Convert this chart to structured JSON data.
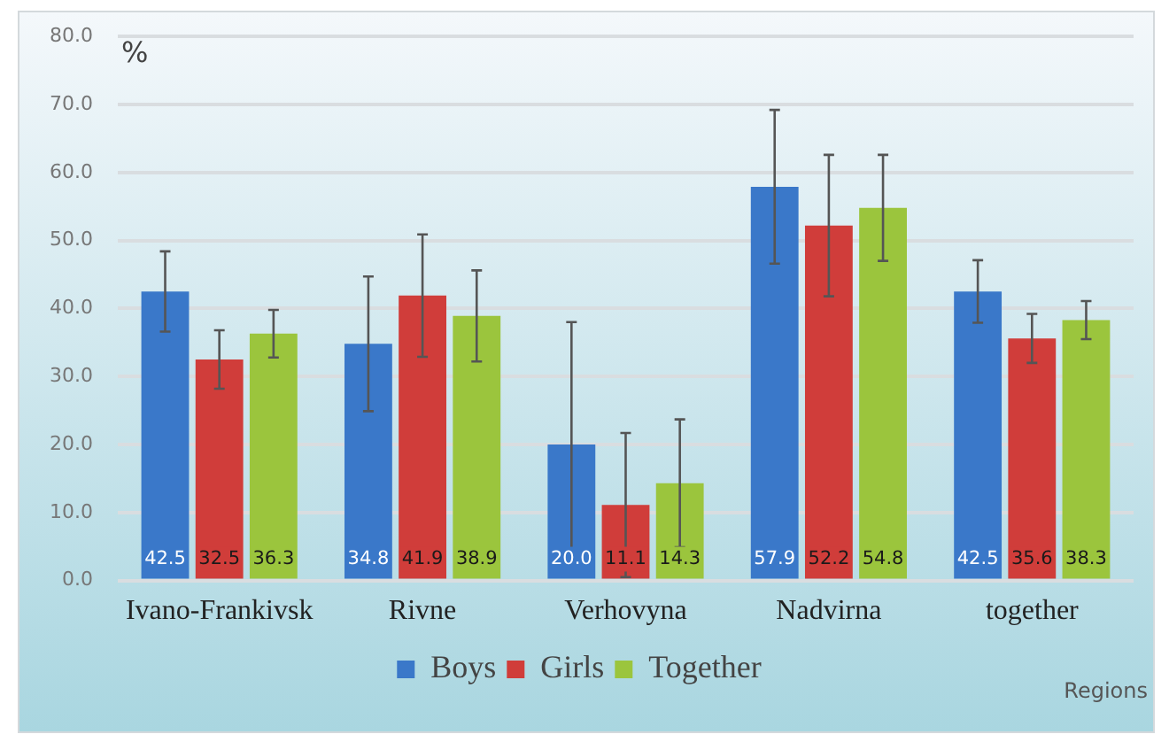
{
  "chart_data": {
    "type": "bar",
    "ylabel": "%",
    "xlabel": "Regions",
    "categories": [
      "Ivano-Frankivsk",
      "Rivne",
      "Verhovyna",
      "Nadvirna",
      "together"
    ],
    "series": [
      {
        "name": "Boys",
        "color": "#3a78c9",
        "values": [
          42.5,
          34.8,
          20.0,
          57.9,
          42.5
        ],
        "value_labels": [
          "42.5",
          "34.8",
          "20.0",
          "57.9",
          "42.5"
        ],
        "errors": [
          5.9,
          9.9,
          18.0,
          11.3,
          4.6
        ]
      },
      {
        "name": "Girls",
        "color": "#d03d3a",
        "values": [
          32.5,
          41.9,
          11.1,
          52.2,
          35.6
        ],
        "value_labels": [
          "32.5",
          "41.9",
          "11.1",
          "52.2",
          "35.6"
        ],
        "errors": [
          4.3,
          9.0,
          10.6,
          10.4,
          3.6
        ]
      },
      {
        "name": "Together",
        "color": "#9bc53d",
        "values": [
          36.3,
          38.9,
          14.3,
          54.8,
          38.3
        ],
        "value_labels": [
          "36.3",
          "38.9",
          "14.3",
          "54.8",
          "38.3"
        ],
        "errors": [
          3.5,
          6.7,
          9.4,
          7.8,
          2.8
        ]
      }
    ],
    "ylim": [
      0,
      80
    ],
    "yticks": [
      {
        "value": 0,
        "label": "0.0"
      },
      {
        "value": 10,
        "label": "10.0"
      },
      {
        "value": 20,
        "label": "20.0"
      },
      {
        "value": 30,
        "label": "30.0"
      },
      {
        "value": 40,
        "label": "40.0"
      },
      {
        "value": 50,
        "label": "50.0"
      },
      {
        "value": 60,
        "label": "60.0"
      },
      {
        "value": 70,
        "label": "70.0"
      },
      {
        "value": 80,
        "label": "80.0"
      }
    ],
    "grid": "y",
    "legend": "bottom"
  }
}
